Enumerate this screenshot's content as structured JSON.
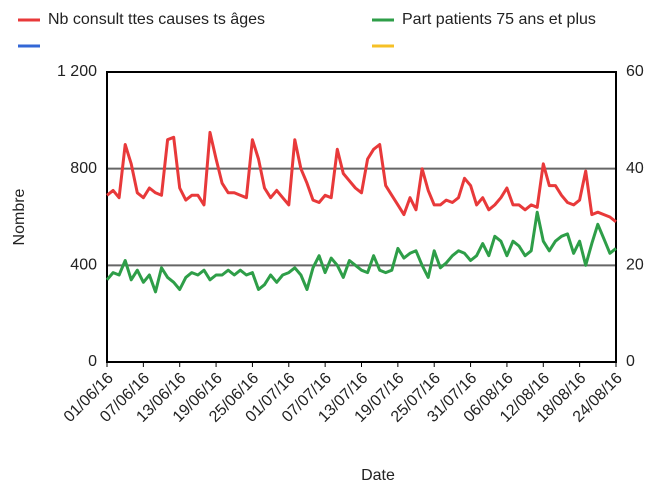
{
  "chart_data": {
    "type": "line",
    "x_label": "Date",
    "y_label": "Nombre",
    "categories": [
      "01/06/16",
      null,
      null,
      null,
      null,
      null,
      "07/06/16",
      null,
      null,
      null,
      null,
      null,
      "13/06/16",
      null,
      null,
      null,
      null,
      null,
      "19/06/16",
      null,
      null,
      null,
      null,
      null,
      "25/06/16",
      null,
      null,
      null,
      null,
      null,
      "01/07/16",
      null,
      null,
      null,
      null,
      null,
      "07/07/16",
      null,
      null,
      null,
      null,
      null,
      "13/07/16",
      null,
      null,
      null,
      null,
      null,
      "19/07/16",
      null,
      null,
      null,
      null,
      null,
      "25/07/16",
      null,
      null,
      null,
      null,
      null,
      "31/07/16",
      null,
      null,
      null,
      null,
      null,
      "06/08/16",
      null,
      null,
      null,
      null,
      null,
      "12/08/16",
      null,
      null,
      null,
      null,
      null,
      "18/08/16",
      null,
      null,
      null,
      null,
      null,
      "24/08/16"
    ],
    "series": [
      {
        "name": "Nb consult ttes causes ts âges",
        "color": "#e8393a",
        "values": [
          690,
          710,
          680,
          900,
          820,
          700,
          680,
          720,
          700,
          690,
          920,
          930,
          720,
          670,
          690,
          690,
          650,
          950,
          840,
          740,
          700,
          700,
          690,
          680,
          920,
          840,
          720,
          680,
          710,
          680,
          650,
          920,
          800,
          740,
          670,
          660,
          690,
          680,
          880,
          780,
          750,
          720,
          700,
          840,
          880,
          900,
          730,
          690,
          650,
          610,
          680,
          630,
          800,
          710,
          650,
          650,
          670,
          660,
          680,
          760,
          730,
          650,
          680,
          630,
          650,
          680,
          720,
          650,
          650,
          630,
          650,
          640,
          820,
          730,
          730,
          690,
          660,
          650,
          670,
          790,
          610,
          620,
          610,
          600,
          580
        ]
      },
      {
        "name": "Part patients 75 ans et plus",
        "color": "#2e9e48",
        "axis": "y2",
        "values": [
          17,
          18.5,
          18,
          21,
          17,
          19,
          16.5,
          18,
          14.5,
          19.5,
          17.5,
          16.5,
          15,
          17.5,
          18.5,
          18,
          19,
          17,
          18,
          18,
          19,
          18,
          19,
          18,
          18.5,
          15,
          16,
          18,
          16.5,
          18,
          18.5,
          19.5,
          18,
          15,
          19.5,
          22,
          18.5,
          21.5,
          20,
          17.5,
          21,
          20,
          19,
          18.5,
          22,
          19,
          18.5,
          19,
          23.5,
          21.5,
          22.5,
          23,
          20,
          17.5,
          23,
          19.5,
          20.5,
          22,
          23,
          22.5,
          21,
          22,
          24.5,
          22,
          26,
          25,
          22,
          25,
          24,
          22,
          23,
          31,
          25,
          23,
          25,
          26,
          26.5,
          22.5,
          25,
          20,
          24.5,
          28.5,
          25.5,
          22.5,
          23.5
        ]
      }
    ],
    "legend_extra_colors": [
      "#3367d6",
      "#f6c026"
    ],
    "ylim": [
      0,
      1200
    ],
    "yticks": [
      0,
      400,
      800,
      {
        "value": 1200,
        "label": "1 200"
      }
    ],
    "y2lim": [
      0,
      60
    ],
    "y2ticks": [
      0,
      20,
      40,
      60
    ],
    "grid": true,
    "legend": "top"
  }
}
